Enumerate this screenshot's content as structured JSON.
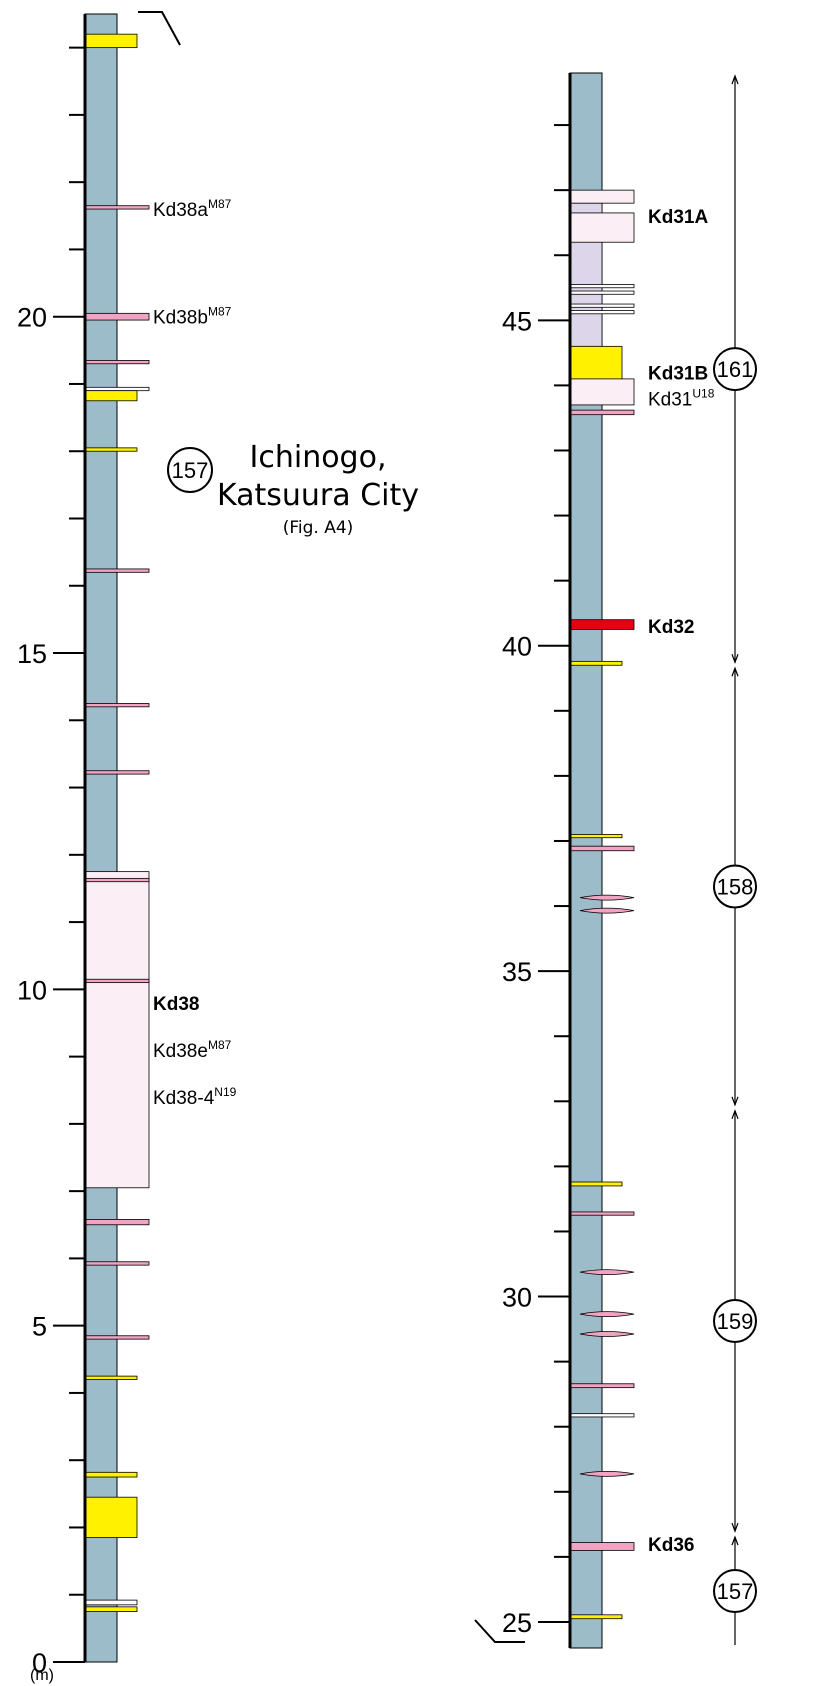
{
  "colors": {
    "mud": "#9dbcc9",
    "pale_pink": "#fbeef4",
    "pink": "#f0a3c2",
    "yellow": "#fff100",
    "red": "#e60012",
    "lavender": "#ddd5e9",
    "white": "#ffffff"
  },
  "left_column": {
    "unit": "(m)",
    "axis_min": 0,
    "axis_max": 24.5,
    "ticks": [
      0,
      5,
      10,
      15,
      20
    ],
    "location": {
      "number": "157",
      "name_line1": "Ichinogo,",
      "name_line2": "Katsuura City",
      "figure_ref": "(Fig. A4)"
    },
    "labels": [
      {
        "key": "kd38a",
        "text": "Kd38a",
        "sup": "M87",
        "bold": false,
        "at": 21.6
      },
      {
        "key": "kd38b",
        "text": "Kd38b",
        "sup": "M87",
        "bold": false,
        "at": 20.0
      },
      {
        "key": "kd38",
        "text": "Kd38",
        "sup": "",
        "bold": true,
        "at": 9.8
      },
      {
        "key": "kd38e",
        "text": "Kd38e",
        "sup": "M87",
        "bold": false,
        "at": 9.1
      },
      {
        "key": "kd38-4",
        "text": "Kd38-4",
        "sup": "N19",
        "bold": false,
        "at": 8.4
      }
    ],
    "layers": [
      {
        "kind": "yellow",
        "from": 24.0,
        "to": 24.2,
        "w": "narrow"
      },
      {
        "kind": "pink",
        "from": 21.6,
        "to": 21.65,
        "w": "wide"
      },
      {
        "kind": "pink",
        "from": 19.95,
        "to": 20.05,
        "w": "wide"
      },
      {
        "kind": "pink",
        "from": 19.3,
        "to": 19.35,
        "w": "wide"
      },
      {
        "kind": "white",
        "from": 18.9,
        "to": 18.95,
        "w": "wide"
      },
      {
        "kind": "yellow",
        "from": 18.75,
        "to": 18.9,
        "w": "narrow"
      },
      {
        "kind": "yellow",
        "from": 18.0,
        "to": 18.05,
        "w": "narrow"
      },
      {
        "kind": "pink",
        "from": 16.2,
        "to": 16.25,
        "w": "wide"
      },
      {
        "kind": "pink",
        "from": 14.2,
        "to": 14.25,
        "w": "wide"
      },
      {
        "kind": "pink",
        "from": 13.2,
        "to": 13.25,
        "w": "wide"
      },
      {
        "kind": "pale_pink",
        "from": 7.05,
        "to": 11.75,
        "w": "wide"
      },
      {
        "kind": "pink",
        "from": 11.6,
        "to": 11.65,
        "w": "wide"
      },
      {
        "kind": "pink",
        "from": 10.1,
        "to": 10.15,
        "w": "wide"
      },
      {
        "kind": "pink",
        "from": 6.5,
        "to": 6.58,
        "w": "wide"
      },
      {
        "kind": "pink",
        "from": 5.9,
        "to": 5.95,
        "w": "wide"
      },
      {
        "kind": "pink",
        "from": 4.8,
        "to": 4.85,
        "w": "wide"
      },
      {
        "kind": "yellow",
        "from": 4.2,
        "to": 4.25,
        "w": "narrow"
      },
      {
        "kind": "yellow",
        "from": 2.75,
        "to": 2.82,
        "w": "narrow"
      },
      {
        "kind": "yellow",
        "from": 1.85,
        "to": 2.45,
        "w": "narrow"
      },
      {
        "kind": "white",
        "from": 0.85,
        "to": 0.92,
        "w": "narrow"
      },
      {
        "kind": "yellow",
        "from": 0.75,
        "to": 0.82,
        "w": "narrow"
      }
    ]
  },
  "right_column": {
    "axis_min": 24.6,
    "axis_max": 48.8,
    "ticks": [
      25,
      30,
      35,
      40,
      45
    ],
    "labels": [
      {
        "key": "kd31a",
        "text": "Kd31A",
        "sup": "",
        "bold": true,
        "at": 46.6
      },
      {
        "key": "kd31b",
        "text": "Kd31B",
        "sup": "",
        "bold": true,
        "at": 44.2
      },
      {
        "key": "kd31",
        "text": "Kd31",
        "sup": "U18",
        "bold": false,
        "at": 43.8
      },
      {
        "key": "kd32",
        "text": "Kd32",
        "sup": "",
        "bold": true,
        "at": 40.3
      },
      {
        "key": "kd36",
        "text": "Kd36",
        "sup": "",
        "bold": true,
        "at": 26.2
      }
    ],
    "intervals": [
      {
        "number": "157",
        "from": 24.6,
        "to": 26.35
      },
      {
        "number": "159",
        "from": 26.35,
        "to": 32.9
      },
      {
        "number": "158",
        "from": 32.9,
        "to": 39.7
      },
      {
        "number": "161",
        "from": 39.7,
        "to": 48.8
      }
    ],
    "layers": [
      {
        "kind": "lavender",
        "from": 44.6,
        "to": 46.8,
        "w": "narrow"
      },
      {
        "kind": "pale_pink",
        "from": 46.8,
        "to": 47.0,
        "w": "wide"
      },
      {
        "kind": "pale_pink",
        "from": 46.2,
        "to": 46.65,
        "w": "wide"
      },
      {
        "kind": "white",
        "from": 45.5,
        "to": 45.55,
        "w": "wide"
      },
      {
        "kind": "white",
        "from": 45.4,
        "to": 45.45,
        "w": "wide"
      },
      {
        "kind": "white",
        "from": 45.2,
        "to": 45.25,
        "w": "wide"
      },
      {
        "kind": "white",
        "from": 45.1,
        "to": 45.15,
        "w": "wide"
      },
      {
        "kind": "yellow",
        "from": 44.1,
        "to": 44.6,
        "w": "mid"
      },
      {
        "kind": "pale_pink",
        "from": 43.7,
        "to": 44.1,
        "w": "wide"
      },
      {
        "kind": "pink",
        "from": 43.55,
        "to": 43.62,
        "w": "wide"
      },
      {
        "kind": "red",
        "from": 40.25,
        "to": 40.4,
        "w": "wide"
      },
      {
        "kind": "yellow",
        "from": 39.7,
        "to": 39.76,
        "w": "mid"
      },
      {
        "kind": "yellow",
        "from": 37.05,
        "to": 37.1,
        "w": "mid"
      },
      {
        "kind": "pink",
        "from": 36.85,
        "to": 36.92,
        "w": "wide"
      },
      {
        "kind": "lens",
        "from": 36.1,
        "to": 36.16,
        "w": "wide"
      },
      {
        "kind": "lens",
        "from": 35.9,
        "to": 35.96,
        "w": "wide"
      },
      {
        "kind": "yellow",
        "from": 31.7,
        "to": 31.76,
        "w": "mid"
      },
      {
        "kind": "pink",
        "from": 31.25,
        "to": 31.3,
        "w": "wide"
      },
      {
        "kind": "lens",
        "from": 30.35,
        "to": 30.4,
        "w": "wide"
      },
      {
        "kind": "lens",
        "from": 29.7,
        "to": 29.76,
        "w": "wide"
      },
      {
        "kind": "lens",
        "from": 29.4,
        "to": 29.45,
        "w": "wide"
      },
      {
        "kind": "pink",
        "from": 28.6,
        "to": 28.66,
        "w": "wide"
      },
      {
        "kind": "white",
        "from": 28.15,
        "to": 28.2,
        "w": "wide"
      },
      {
        "kind": "lens",
        "from": 27.25,
        "to": 27.3,
        "w": "wide"
      },
      {
        "kind": "pink",
        "from": 26.1,
        "to": 26.22,
        "w": "wide"
      },
      {
        "kind": "yellow",
        "from": 25.05,
        "to": 25.11,
        "w": "mid"
      }
    ]
  }
}
